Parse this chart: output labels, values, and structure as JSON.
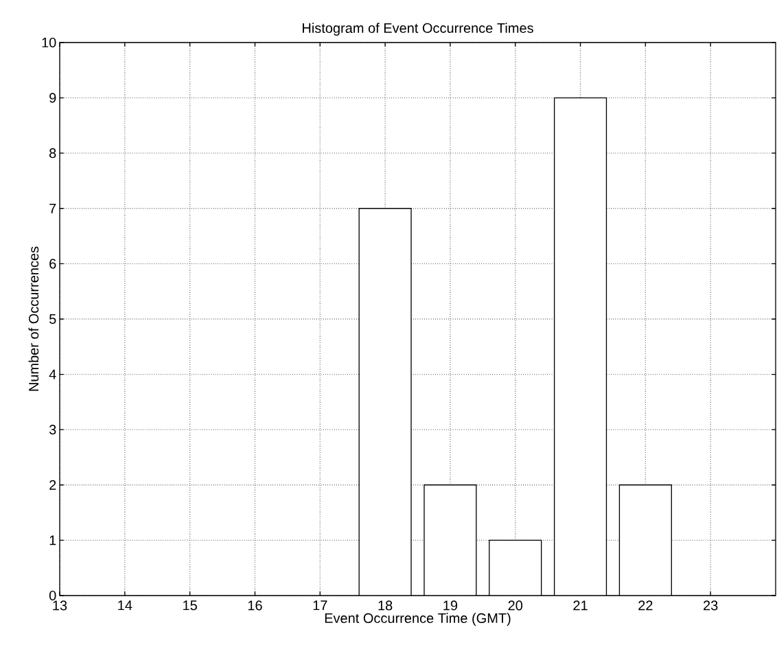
{
  "chart_data": {
    "type": "bar",
    "title": "Histogram of Event Occurrence Times",
    "xlabel": "Event Occurrence Time (GMT)",
    "ylabel": "Number of Occurrences",
    "x": [
      18,
      19,
      20,
      21,
      22
    ],
    "values": [
      7,
      2,
      1,
      9,
      2
    ],
    "color": "#ffffff",
    "xlim": [
      13,
      24
    ],
    "xticks": [
      13,
      14,
      15,
      16,
      17,
      18,
      19,
      20,
      21,
      22,
      23
    ],
    "ylim": [
      0,
      10
    ],
    "yticks": [
      0,
      1,
      2,
      3,
      4,
      5,
      6,
      7,
      8,
      9,
      10
    ],
    "grid": true
  }
}
